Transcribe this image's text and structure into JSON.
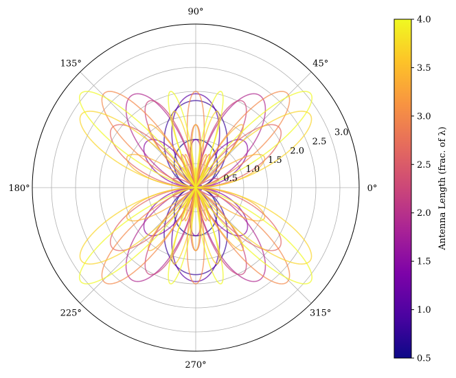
{
  "chart_data": {
    "type": "polar-line",
    "description_of_curves": "Normalized radiation patterns |cos(pi*L*cos(theta)) - cos(pi*L)| / sin(theta) of dipole antennas for lengths L from 0.5 to 4.0 wavelengths, each colored by L",
    "lengths": [
      0.5,
      0.8,
      1.1,
      1.5,
      1.9,
      2.2,
      2.6,
      3.0,
      3.4,
      3.7,
      4.0
    ],
    "theta_tick_labels": [
      "0°",
      "45°",
      "90°",
      "135°",
      "180°",
      "225°",
      "270°",
      "315°"
    ],
    "radial_tick_labels": [
      "0.5",
      "1.0",
      "1.5",
      "2.0",
      "2.5",
      "3.0"
    ],
    "radial_ticks": [
      0.5,
      1.0,
      1.5,
      2.0,
      2.5,
      3.0
    ],
    "rlim": [
      0,
      3.4
    ],
    "grid": true,
    "colormap": "plasma",
    "colorbar": {
      "label": "Antenna Length (frac. of λ)",
      "ticks": [
        0.5,
        1.0,
        1.5,
        2.0,
        2.5,
        3.0,
        3.5,
        4.0
      ],
      "tick_labels": [
        "0.5",
        "1.0",
        "1.5",
        "2.0",
        "2.5",
        "3.0",
        "3.5",
        "4.0"
      ],
      "range": [
        0.5,
        4.0
      ]
    }
  }
}
